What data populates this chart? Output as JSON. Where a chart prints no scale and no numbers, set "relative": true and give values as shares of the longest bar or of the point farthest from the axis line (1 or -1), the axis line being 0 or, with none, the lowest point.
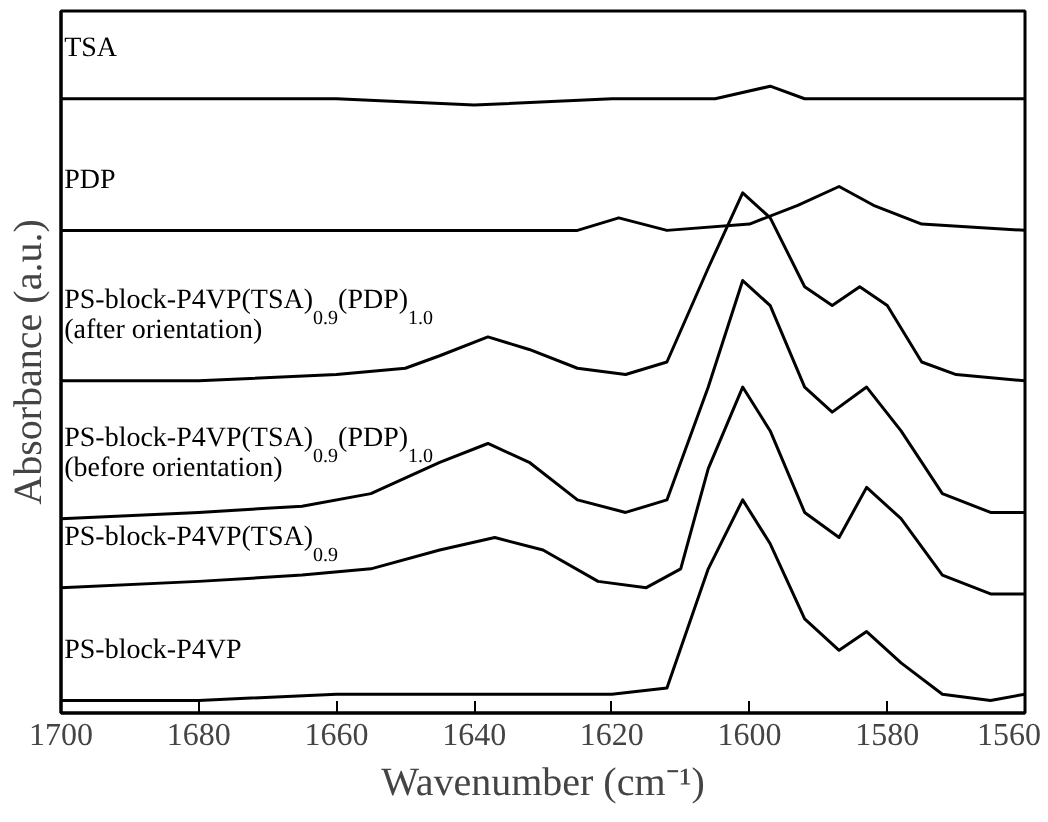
{
  "chart_data": {
    "type": "line",
    "relative": true,
    "xlabel": "Wavenumber (cm⁻¹)",
    "ylabel": "Absorbance (a.u.)",
    "xlim": [
      1700,
      1560
    ],
    "xticks": [
      1700,
      1680,
      1660,
      1640,
      1620,
      1600,
      1580,
      1560
    ],
    "grid": false,
    "annotations": [
      {
        "text": "(after orientation)",
        "x": 1700,
        "y": 0.53
      },
      {
        "text": "(before orientation)",
        "x": 1700,
        "y": 0.31
      }
    ],
    "tick_labels": "x",
    "line_style": "solid",
    "marker": "none",
    "series": [
      {
        "name": "TSA",
        "color": "#000000",
        "x": [
          1700,
          1680,
          1660,
          1640,
          1620,
          1605,
          1597,
          1592,
          1580,
          1560
        ],
        "values": [
          0.98,
          0.98,
          0.98,
          0.97,
          0.98,
          0.98,
          1.0,
          0.98,
          0.98,
          0.98
        ]
      },
      {
        "name": "PDP",
        "color": "#000000",
        "x": [
          1700,
          1660,
          1640,
          1625,
          1619,
          1612,
          1600,
          1593,
          1587,
          1582,
          1575,
          1560
        ],
        "values": [
          0.77,
          0.77,
          0.77,
          0.77,
          0.79,
          0.77,
          0.78,
          0.81,
          0.84,
          0.81,
          0.78,
          0.77
        ]
      },
      {
        "name": "PS-block-P4VP(TSA)$_{0.9}$(PDP)$_{1.0}$",
        "color": "#000000",
        "x": [
          1700,
          1680,
          1660,
          1650,
          1645,
          1638,
          1632,
          1625,
          1618,
          1612,
          1606,
          1601,
          1597,
          1592,
          1588,
          1584,
          1580,
          1575,
          1570,
          1560
        ],
        "values": [
          0.53,
          0.53,
          0.54,
          0.55,
          0.57,
          0.6,
          0.58,
          0.55,
          0.54,
          0.56,
          0.71,
          0.83,
          0.79,
          0.68,
          0.65,
          0.68,
          0.65,
          0.56,
          0.54,
          0.53
        ]
      },
      {
        "name": "PS-block-P4VP(TSA)$_{0.9}$(PDP)$_{1.0}$",
        "color": "#000000",
        "x": [
          1700,
          1680,
          1665,
          1655,
          1645,
          1638,
          1632,
          1625,
          1618,
          1612,
          1606,
          1601,
          1597,
          1592,
          1588,
          1583,
          1578,
          1572,
          1565,
          1560
        ],
        "values": [
          0.31,
          0.32,
          0.33,
          0.35,
          0.4,
          0.43,
          0.4,
          0.34,
          0.32,
          0.34,
          0.52,
          0.69,
          0.65,
          0.52,
          0.48,
          0.52,
          0.45,
          0.35,
          0.32,
          0.32
        ]
      },
      {
        "name": "PS-block-P4VP(TSA)$_{0.9}$",
        "color": "#000000",
        "x": [
          1700,
          1680,
          1665,
          1655,
          1645,
          1637,
          1630,
          1622,
          1615,
          1610,
          1606,
          1601,
          1597,
          1592,
          1587,
          1583,
          1578,
          1572,
          1565,
          1560
        ],
        "values": [
          0.2,
          0.21,
          0.22,
          0.23,
          0.26,
          0.28,
          0.26,
          0.21,
          0.2,
          0.23,
          0.39,
          0.52,
          0.45,
          0.32,
          0.28,
          0.36,
          0.31,
          0.22,
          0.19,
          0.19
        ]
      },
      {
        "name": "PS-block-P4VP",
        "color": "#000000",
        "x": [
          1700,
          1680,
          1660,
          1640,
          1620,
          1612,
          1606,
          1601,
          1597,
          1592,
          1587,
          1583,
          1578,
          1572,
          1565,
          1560
        ],
        "values": [
          0.02,
          0.02,
          0.03,
          0.03,
          0.03,
          0.04,
          0.23,
          0.34,
          0.27,
          0.15,
          0.1,
          0.13,
          0.08,
          0.03,
          0.02,
          0.03
        ]
      }
    ]
  }
}
